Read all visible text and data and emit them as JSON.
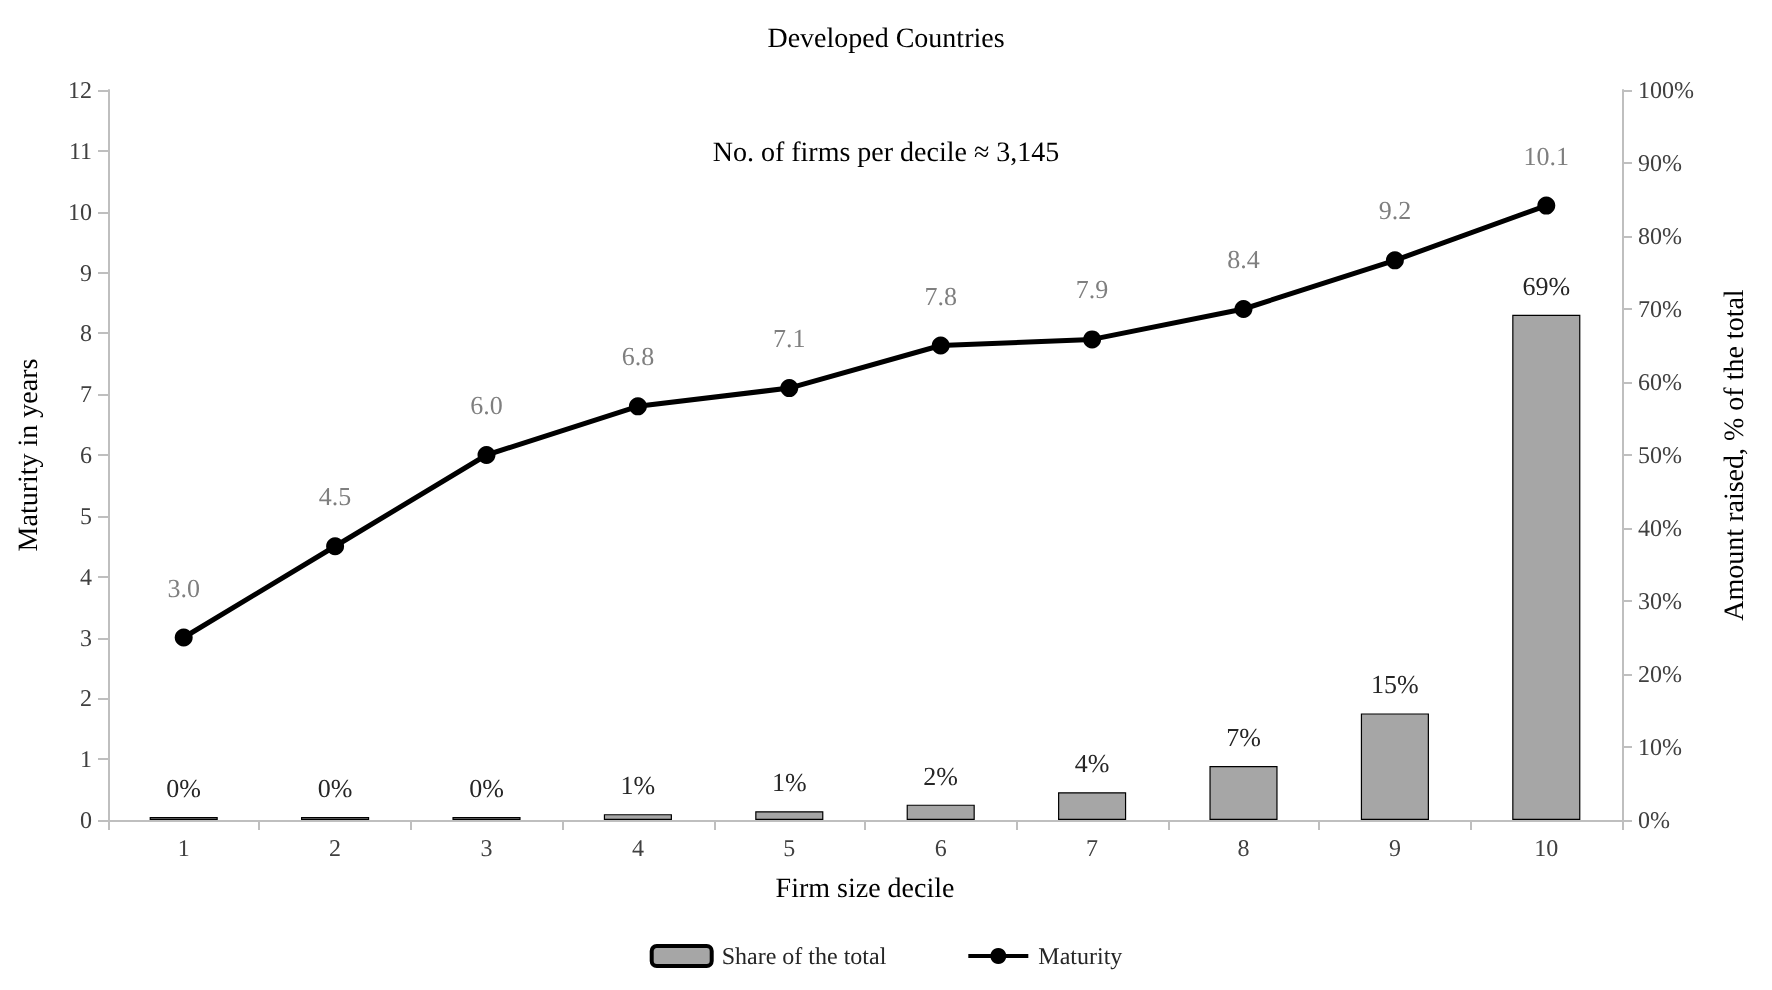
{
  "chart_data": {
    "type": "bar",
    "title": "Developed Countries",
    "xlabel": "Firm size decile",
    "ylabel": "Maturity in years",
    "y2label": "Amount raised, % of the total",
    "annotations": [
      "No. of firms per decile ≈ 3,145"
    ],
    "categories": [
      "1",
      "2",
      "3",
      "4",
      "5",
      "6",
      "7",
      "8",
      "9",
      "10"
    ],
    "series": [
      {
        "name": "Share of the total",
        "axis": "y2",
        "color": "#a6a6a6",
        "values": [
          0.4,
          0.4,
          0.4,
          0.8,
          1.2,
          2.1,
          3.8,
          7.4,
          14.6,
          69.2
        ],
        "value_labels": [
          "0%",
          "0%",
          "0%",
          "1%",
          "1%",
          "2%",
          "4%",
          "7%",
          "15%",
          "69%"
        ]
      },
      {
        "name": "Maturity",
        "type": "line",
        "color": "#000000",
        "marker": "circle",
        "line_style": "solid",
        "values": [
          3.0,
          4.5,
          6.0,
          6.8,
          7.1,
          7.8,
          7.9,
          8.4,
          9.2,
          10.1
        ],
        "value_labels": [
          "3.0",
          "4.5",
          "6.0",
          "6.8",
          "7.1",
          "7.8",
          "7.9",
          "8.4",
          "9.2",
          "10.1"
        ]
      }
    ],
    "ylim": [
      0,
      12
    ],
    "yticks": [
      0,
      1,
      2,
      3,
      4,
      5,
      6,
      7,
      8,
      9,
      10,
      11,
      12
    ],
    "y2lim": [
      0,
      100
    ],
    "y2ticks": [
      {
        "value": 0,
        "label": "0%"
      },
      {
        "value": 10,
        "label": "10%"
      },
      {
        "value": 20,
        "label": "20%"
      },
      {
        "value": 30,
        "label": "30%"
      },
      {
        "value": 40,
        "label": "40%"
      },
      {
        "value": 50,
        "label": "50%"
      },
      {
        "value": 60,
        "label": "60%"
      },
      {
        "value": 70,
        "label": "70%"
      },
      {
        "value": 80,
        "label": "80%"
      },
      {
        "value": 90,
        "label": "90%"
      },
      {
        "value": 100,
        "label": "100%"
      }
    ],
    "grid": false,
    "legend": "bottom"
  }
}
